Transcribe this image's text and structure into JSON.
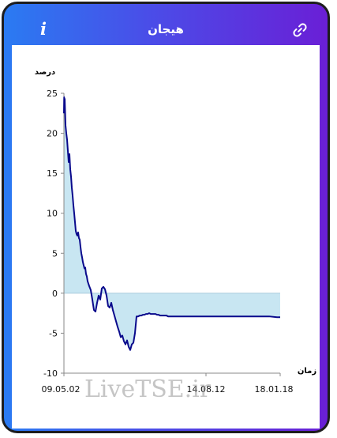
{
  "header": {
    "title": "هیجان",
    "info_icon": "info-icon",
    "info_glyph": "i",
    "link_icon": "link-icon"
  },
  "colors": {
    "header_gradient_start": "#2a7bf2",
    "header_gradient_end": "#6a1fd6",
    "line": "#0a0a8c",
    "fill": "#c8e6f2"
  },
  "watermark": "LiveTSE.ir",
  "chart_data": {
    "type": "area",
    "ylabel": "درصد",
    "xlabel": "زمان",
    "ylim": [
      -10,
      25
    ],
    "yticks": [
      25,
      20,
      15,
      10,
      5,
      0,
      -5,
      -10
    ],
    "xtick_labels": [
      "09.05.02",
      "14.08.12",
      "18.01.18"
    ],
    "baseline": 0,
    "grid": false,
    "series": [
      {
        "x": [
          0,
          0.3,
          0.6,
          1,
          2,
          3,
          4,
          5,
          6,
          7,
          8,
          9,
          10,
          11,
          12,
          13,
          14,
          15,
          16,
          17,
          18,
          19,
          20,
          21,
          22,
          23,
          24,
          25,
          26,
          27,
          28,
          29,
          30,
          32,
          34,
          36,
          38,
          40,
          42,
          44,
          46,
          48,
          50,
          52,
          54,
          56,
          58,
          60,
          62,
          64,
          66,
          68,
          70,
          72,
          74,
          76,
          78,
          80,
          82,
          84,
          86,
          88,
          90,
          92,
          94,
          96,
          98,
          100,
          102,
          104,
          106,
          108,
          110,
          112,
          114,
          116,
          118,
          120,
          122,
          124,
          126,
          128,
          130,
          132,
          134,
          136,
          138,
          140,
          142,
          144,
          146,
          148,
          150,
          155,
          160,
          165,
          170,
          175,
          180,
          185,
          190,
          195,
          200,
          210,
          220,
          230,
          240,
          250,
          260,
          270,
          274
        ],
        "values": [
          22.5,
          24.5,
          23.8,
          24.3,
          21,
          20,
          19.2,
          17.8,
          16.4,
          17.4,
          15.5,
          14.6,
          13.2,
          12.2,
          11,
          10,
          8.9,
          7.8,
          7.4,
          7.2,
          7.6,
          6.9,
          6.7,
          5.8,
          5,
          4.5,
          3.9,
          3.5,
          3.1,
          3.2,
          2.4,
          2.1,
          1.5,
          0.9,
          0.4,
          -0.8,
          -2.1,
          -2.3,
          -1.2,
          -0.3,
          -0.8,
          0.6,
          0.8,
          0.5,
          -0.3,
          -1.6,
          -1.8,
          -1.2,
          -2.1,
          -2.8,
          -3.5,
          -4.2,
          -4.8,
          -5.5,
          -5.3,
          -6.0,
          -6.4,
          -5.9,
          -6.7,
          -7.1,
          -6.4,
          -6.2,
          -5.0,
          -2.9,
          -2.9,
          -2.8,
          -2.8,
          -2.7,
          -2.7,
          -2.6,
          -2.6,
          -2.5,
          -2.6,
          -2.6,
          -2.6,
          -2.6,
          -2.7,
          -2.7,
          -2.8,
          -2.8,
          -2.8,
          -2.8,
          -2.8,
          -2.9,
          -2.9,
          -2.9,
          -2.9,
          -2.9,
          -2.9,
          -2.9,
          -2.9,
          -2.9,
          -2.9,
          -2.9,
          -2.9,
          -2.9,
          -2.9,
          -2.9,
          -2.9,
          -2.9,
          -2.9,
          -2.9,
          -2.9,
          -2.9,
          -2.9,
          -2.9,
          -2.9,
          -2.9,
          -2.9,
          -3.0,
          -3.0
        ],
        "xtick_positions": [
          0,
          180,
          274
        ]
      }
    ]
  }
}
